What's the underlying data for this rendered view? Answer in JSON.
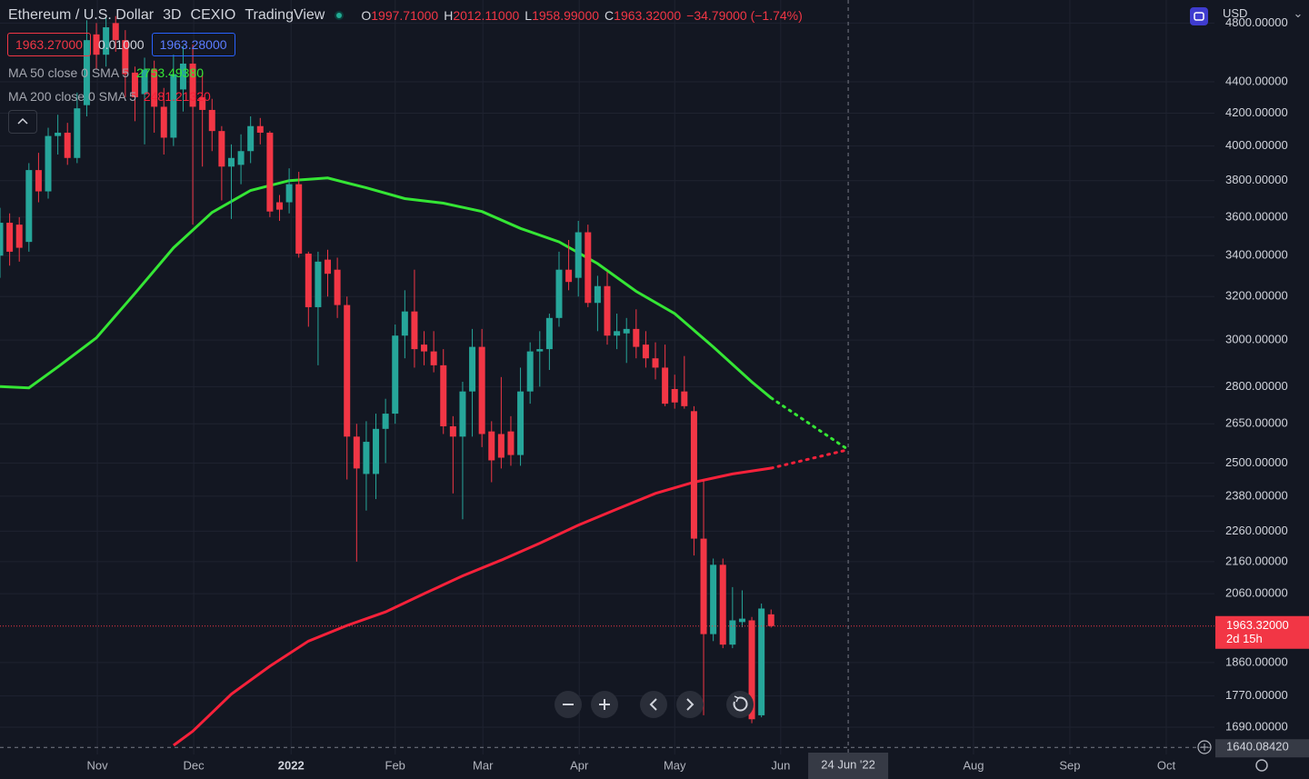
{
  "header": {
    "symbol": "Ethereum / U.S. Dollar",
    "interval": "3D",
    "exchange": "CEXIO",
    "source": "TradingView",
    "ohlc": [
      {
        "label": "O",
        "value": "1997.71000"
      },
      {
        "label": "H",
        "value": "2012.11000"
      },
      {
        "label": "L",
        "value": "1958.99000"
      },
      {
        "label": "C",
        "value": "1963.32000"
      }
    ],
    "change": "−34.79000 (−1.74%)"
  },
  "quote": {
    "bid": "1963.27000",
    "spread": "0.01000",
    "ask": "1963.28000"
  },
  "currency": "USD",
  "chart_data": {
    "type": "candlestick",
    "log_scale": true,
    "grid": true,
    "up_color": "#26a69a",
    "down_color": "#f23645",
    "x": [
      0,
      1,
      2,
      3,
      4,
      5,
      6,
      7,
      8,
      9,
      10,
      11,
      12,
      13,
      14,
      15,
      16,
      17,
      18,
      19,
      20,
      21,
      22,
      23,
      24,
      25,
      26,
      27,
      28,
      29,
      30,
      31,
      32,
      33,
      34,
      35,
      36,
      37,
      38,
      39,
      40,
      41,
      42,
      43,
      44,
      45,
      46,
      47,
      48,
      49,
      50,
      51,
      52,
      53,
      54,
      55,
      56,
      57,
      58,
      59,
      60,
      61,
      62,
      63,
      64,
      65,
      66,
      67,
      68,
      69,
      70,
      71,
      72,
      73,
      74,
      75,
      76,
      77,
      78,
      79,
      80
    ],
    "open": [
      3400,
      3570,
      3560,
      3470,
      3860,
      3740,
      4060,
      4080,
      3930,
      4250,
      4720,
      4580,
      4800,
      4680,
      4460,
      4320,
      4480,
      4240,
      4050,
      4350,
      4520,
      4300,
      4220,
      4090,
      3880,
      3890,
      3970,
      4120,
      4080,
      3680,
      3680,
      3780,
      3410,
      3150,
      3380,
      3330,
      3160,
      2600,
      2460,
      2460,
      2630,
      2690,
      3020,
      3130,
      2980,
      2950,
      2890,
      2640,
      2600,
      2780,
      2970,
      2620,
      2610,
      2620,
      2530,
      2780,
      2950,
      2960,
      3100,
      3330,
      3290,
      3520,
      3170,
      3250,
      3020,
      3030,
      3050,
      2980,
      2920,
      2880,
      2790,
      2780,
      2700,
      2235,
      1940,
      2150,
      1910,
      1975,
      1980,
      1720,
      1997.71
    ],
    "high": [
      3650,
      3620,
      3600,
      3900,
      3960,
      4110,
      4190,
      4140,
      4330,
      4820,
      4800,
      4840,
      4850,
      4750,
      4500,
      4560,
      4540,
      4360,
      4580,
      4640,
      4650,
      4460,
      4290,
      4120,
      4010,
      4070,
      4180,
      4170,
      4090,
      3720,
      3870,
      3850,
      3420,
      3420,
      3430,
      3390,
      3200,
      2650,
      2660,
      2690,
      2750,
      3070,
      3230,
      3330,
      3040,
      3040,
      2960,
      2680,
      2820,
      3050,
      3050,
      2660,
      2840,
      2680,
      2880,
      2990,
      3040,
      3120,
      3420,
      3480,
      3580,
      3560,
      3300,
      3320,
      3120,
      3100,
      3140,
      3040,
      2990,
      2980,
      2850,
      2930,
      2720,
      2440,
      2170,
      2170,
      2080,
      2070,
      1990,
      2030,
      2012.11
    ],
    "low": [
      3290,
      3350,
      3370,
      3420,
      3680,
      3700,
      3950,
      3890,
      3900,
      4180,
      4480,
      4500,
      4600,
      4300,
      4150,
      4010,
      4080,
      3950,
      4000,
      4210,
      3560,
      3880,
      3970,
      3690,
      3590,
      3780,
      3900,
      4010,
      3600,
      3580,
      3620,
      3390,
      3060,
      2890,
      3200,
      3100,
      2440,
      2160,
      2330,
      2370,
      2500,
      2650,
      2920,
      2880,
      2890,
      2860,
      2610,
      2390,
      2300,
      2600,
      2560,
      2430,
      2480,
      2490,
      2490,
      2730,
      2800,
      2870,
      3060,
      3230,
      3200,
      3150,
      3040,
      2980,
      2960,
      2900,
      2920,
      2880,
      2830,
      2720,
      2710,
      2710,
      2180,
      1720,
      1920,
      1900,
      1900,
      1960,
      1700,
      1715,
      1958.99
    ],
    "close": [
      3570,
      3420,
      3440,
      3860,
      3740,
      4060,
      4080,
      3930,
      4230,
      4680,
      4580,
      4770,
      4680,
      4450,
      4300,
      4480,
      4240,
      4050,
      4450,
      4520,
      4240,
      4220,
      4090,
      3880,
      3930,
      3970,
      4120,
      4080,
      3630,
      3640,
      3780,
      3410,
      3150,
      3370,
      3310,
      3160,
      2600,
      2480,
      2580,
      2630,
      2690,
      3020,
      3130,
      2960,
      2950,
      2890,
      2640,
      2600,
      2780,
      2970,
      2610,
      2510,
      2520,
      2530,
      2780,
      2950,
      2960,
      3100,
      3330,
      3270,
      3520,
      3170,
      3250,
      3020,
      3040,
      3050,
      2970,
      2920,
      2880,
      2730,
      2735,
      2720,
      2235,
      1940,
      2150,
      1910,
      1980,
      1985,
      1710,
      2015,
      1963.32
    ],
    "series": [
      {
        "name": "MA 50 close 0 SMA 5",
        "value_label": "2753.49380",
        "color": "#35e635",
        "x": [
          0,
          3,
          6,
          10,
          14,
          18,
          22,
          26,
          30,
          34,
          38,
          42,
          46,
          50,
          54,
          58,
          62,
          66,
          70,
          74,
          78,
          80
        ],
        "values": [
          2800,
          2795,
          2883,
          3010,
          3215,
          3440,
          3625,
          3745,
          3800,
          3815,
          3760,
          3700,
          3675,
          3630,
          3540,
          3470,
          3360,
          3225,
          3120,
          2970,
          2820,
          2753.4938
        ],
        "forecast_x": [
          80,
          88
        ],
        "forecast_values": [
          2753.4938,
          2550
        ]
      },
      {
        "name": "MA 200 close 0 SMA 5",
        "value_label": "2481.21320",
        "color": "#f7213a",
        "x": [
          18,
          20,
          24,
          28,
          32,
          36,
          40,
          44,
          48,
          52,
          56,
          60,
          64,
          68,
          72,
          76,
          80
        ],
        "values": [
          1645,
          1680,
          1775,
          1850,
          1920,
          1965,
          2005,
          2060,
          2115,
          2165,
          2220,
          2280,
          2335,
          2390,
          2430,
          2460,
          2481.2132
        ],
        "forecast_x": [
          80,
          88
        ],
        "forecast_values": [
          2481.2132,
          2550
        ]
      }
    ],
    "ylim": [
      1623,
      4967
    ],
    "yticks": [
      {
        "value": 4800,
        "label": "4800.00000"
      },
      {
        "value": 4400,
        "label": "4400.00000"
      },
      {
        "value": 4200,
        "label": "4200.00000"
      },
      {
        "value": 4000,
        "label": "4000.00000"
      },
      {
        "value": 3800,
        "label": "3800.00000"
      },
      {
        "value": 3600,
        "label": "3600.00000"
      },
      {
        "value": 3400,
        "label": "3400.00000"
      },
      {
        "value": 3200,
        "label": "3200.00000"
      },
      {
        "value": 3000,
        "label": "3000.00000"
      },
      {
        "value": 2800,
        "label": "2800.00000"
      },
      {
        "value": 2650,
        "label": "2650.00000"
      },
      {
        "value": 2500,
        "label": "2500.00000"
      },
      {
        "value": 2380,
        "label": "2380.00000"
      },
      {
        "value": 2260,
        "label": "2260.00000"
      },
      {
        "value": 2160,
        "label": "2160.00000"
      },
      {
        "value": 2060,
        "label": "2060.00000"
      },
      {
        "value": 1860,
        "label": "1860.00000"
      },
      {
        "value": 1770,
        "label": "1770.00000"
      },
      {
        "value": 1690,
        "label": "1690.00000"
      }
    ],
    "xlim": [
      0,
      126
    ],
    "xticks": [
      {
        "value": 10.1,
        "label": "Nov"
      },
      {
        "value": 20.1,
        "label": "Dec"
      },
      {
        "value": 30.2,
        "label": "2022",
        "bold": true
      },
      {
        "value": 41.0,
        "label": "Feb"
      },
      {
        "value": 50.1,
        "label": "Mar"
      },
      {
        "value": 60.1,
        "label": "Apr"
      },
      {
        "value": 70.0,
        "label": "May"
      },
      {
        "value": 81.0,
        "label": "Jun"
      },
      {
        "value": 101.0,
        "label": "Aug"
      },
      {
        "value": 111.0,
        "label": "Sep"
      },
      {
        "value": 121.0,
        "label": "Oct"
      }
    ],
    "last_price": {
      "value": 1963.32,
      "label": "1963.32000",
      "countdown": "2d 15h"
    },
    "crosshair": {
      "x": {
        "value": 88.0,
        "label": "24 Jun '22"
      },
      "y": {
        "value": 1640.0842,
        "label": "1640.08420"
      }
    }
  }
}
